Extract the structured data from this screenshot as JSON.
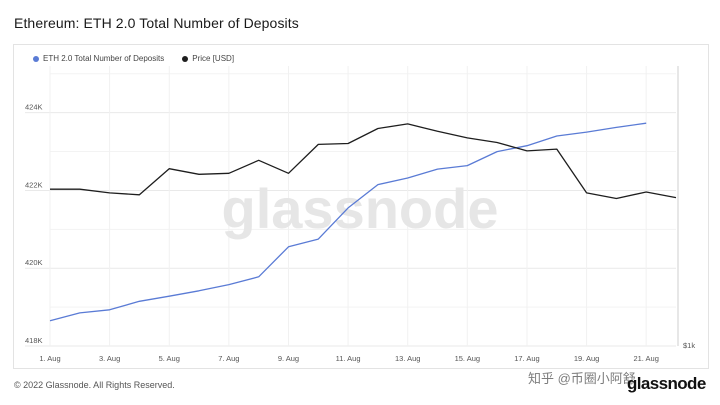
{
  "title": "Ethereum: ETH 2.0 Total Number of Deposits",
  "footer": "© 2022 Glassnode. All Rights Reserved.",
  "brand": "glassnode",
  "watermark": "glassnode",
  "overlay_watermark": "知乎 @币圈小阿舒",
  "colors": {
    "deposits": "#5a7bd5",
    "price": "#1e1e1e",
    "grid": "#e9e9e9",
    "axis_text": "#555555"
  },
  "chart_data": {
    "type": "line",
    "title": "Ethereum: ETH 2.0 Total Number of Deposits",
    "legend_position": "top-left",
    "grid": true,
    "x": [
      "1. Aug",
      "2. Aug",
      "3. Aug",
      "4. Aug",
      "5. Aug",
      "6. Aug",
      "7. Aug",
      "8. Aug",
      "9. Aug",
      "10. Aug",
      "11. Aug",
      "12. Aug",
      "13. Aug",
      "14. Aug",
      "15. Aug",
      "16. Aug",
      "17. Aug",
      "18. Aug",
      "19. Aug",
      "20. Aug",
      "21. Aug",
      "22. Aug"
    ],
    "x_ticks": [
      "1. Aug",
      "3. Aug",
      "5. Aug",
      "7. Aug",
      "9. Aug",
      "11. Aug",
      "13. Aug",
      "15. Aug",
      "17. Aug",
      "19. Aug",
      "21. Aug"
    ],
    "y_left": {
      "ticks": [
        "418K",
        "420K",
        "422K",
        "424K"
      ],
      "tick_values": [
        418000,
        420000,
        422000,
        424000
      ],
      "range": [
        418000,
        425200
      ]
    },
    "y_right": {
      "label": "$1k",
      "range": [
        0,
        3000
      ]
    },
    "series": [
      {
        "name": "ETH 2.0 Total Number of Deposits",
        "axis": "left",
        "color": "#5a7bd5",
        "values": [
          418650,
          418850,
          418930,
          419150,
          419280,
          419420,
          419580,
          419780,
          420550,
          420750,
          421550,
          422150,
          422320,
          422550,
          422640,
          423000,
          423150,
          423400,
          423500,
          423620,
          423730,
          null
        ]
      },
      {
        "name": "Price [USD]",
        "axis": "right",
        "color": "#1e1e1e",
        "values": [
          1680,
          1680,
          1640,
          1620,
          1900,
          1840,
          1850,
          1990,
          1850,
          2160,
          2170,
          2330,
          2380,
          2300,
          2230,
          2180,
          2090,
          2110,
          1640,
          1580,
          1650,
          1590
        ]
      }
    ]
  }
}
